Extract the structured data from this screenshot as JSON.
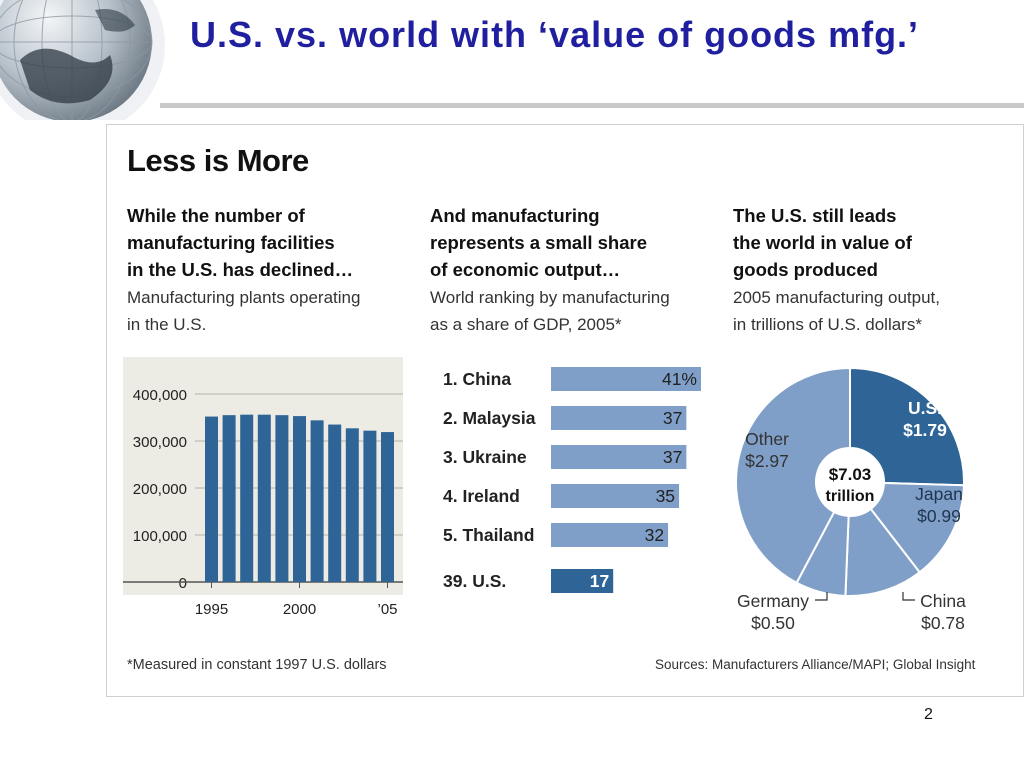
{
  "slide": {
    "title": "U.S. vs. world with ‘value of goods mfg.’",
    "page_number": "2"
  },
  "graphic": {
    "headline": "Less is More",
    "footnote": "*Measured in constant 1997 U.S. dollars",
    "sources": "Sources: Manufacturers Alliance/MAPI; Global Insight",
    "col1": {
      "lead": "While the number of\nmanufacturing facilities\nin the U.S. has declined…",
      "sub": "Manufacturing plants operating\nin the U.S."
    },
    "col2": {
      "lead": "And manufacturing\nrepresents a small share\nof economic output…",
      "sub": "World ranking by manufacturing\nas a share of GDP, 2005*"
    },
    "col3": {
      "lead": "The U.S. still leads\nthe world in value of\ngoods produced",
      "sub": "2005 manufacturing output,\nin trillions of U.S. dollars*"
    }
  },
  "colors": {
    "title": "#1f1f9f",
    "bar_dark": "#2f6596",
    "bar_light": "#7f9fc8",
    "pie_us": "#2f6596",
    "pie_other": "#7f9fc8",
    "plot_bg": "#ecebe4"
  },
  "chart_data": [
    {
      "type": "bar",
      "title": "Manufacturing plants operating in the U.S.",
      "categories": [
        "1995",
        "1996",
        "1997",
        "1998",
        "1999",
        "2000",
        "2001",
        "2002",
        "2003",
        "2004",
        "2005"
      ],
      "values": [
        352000,
        355000,
        356000,
        356000,
        355000,
        353000,
        344000,
        335000,
        327000,
        322000,
        319000
      ],
      "xtick_labels": [
        "1995",
        "2000",
        "’05"
      ],
      "ytick_labels": [
        "400,000",
        "300,000",
        "200,000",
        "100,000",
        "0"
      ],
      "ylim": [
        0,
        400000
      ],
      "grid": true
    },
    {
      "type": "bar",
      "orientation": "horizontal",
      "title": "World ranking by manufacturing as a share of GDP, 2005*",
      "categories": [
        "1. China",
        "2. Malaysia",
        "3. Ukraine",
        "4. Ireland",
        "5. Thailand",
        "39. U.S."
      ],
      "values": [
        41,
        37,
        37,
        35,
        32,
        17
      ],
      "value_labels": [
        "41%",
        "37",
        "37",
        "35",
        "32",
        "17"
      ],
      "unit": "%"
    },
    {
      "type": "pie",
      "title": "2005 manufacturing output, in trillions of U.S. dollars*",
      "center_label": "$7.03",
      "center_label_2": "trillion",
      "slices": [
        {
          "name": "U.S.",
          "value": 1.79,
          "label": "$1.79"
        },
        {
          "name": "Japan",
          "value": 0.99,
          "label": "$0.99"
        },
        {
          "name": "China",
          "value": 0.78,
          "label": "$0.78"
        },
        {
          "name": "Germany",
          "value": 0.5,
          "label": "$0.50"
        },
        {
          "name": "Other",
          "value": 2.97,
          "label": "$2.97"
        }
      ]
    }
  ]
}
